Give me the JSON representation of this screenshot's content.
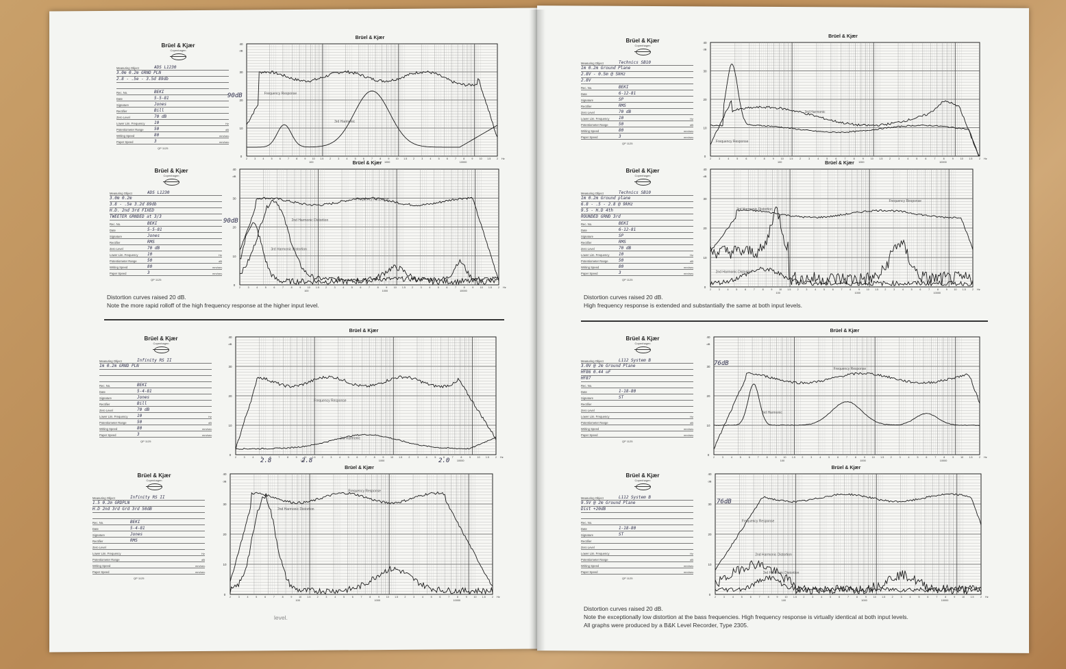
{
  "brand": {
    "title": "Brüel & Kjær",
    "subtitle": "Copenhagen"
  },
  "form_labels": {
    "object": "Measuring Object",
    "rec": "Rec. No.",
    "date": "Date",
    "signature": "Signature",
    "rectifier": "Rectifier",
    "zero": "Zero Level",
    "lower": "Lower Lim. Frequency",
    "pot": "Potentiometer Range",
    "writing": "Writing Speed",
    "paper": "Paper Speed",
    "form_no": "QP 1125",
    "hz": "Hz",
    "db": "dB",
    "mm": "mm/sec."
  },
  "chart_title": "Brüel & Kjær",
  "left": {
    "cards": [
      {
        "object": "ADS L1230",
        "lines": [
          "3.0m 0.2m  GRND PLN",
          "2.8 - .5e - 3.5d 89db"
        ],
        "rec": "BEKI",
        "date": "5-5-81",
        "signature": "Jones",
        "rectifier": "Bill",
        "zero": "70 dB",
        "lower": "10",
        "pot": "50",
        "writing": "80",
        "paper": "3"
      },
      {
        "object": "ADS L1230",
        "lines": [
          "3.0m 0.2m",
          "3.8 - .5e 3.2d 89db",
          "H.D. 2nd  3rd  FIXED",
          "TWEETER  GRNDED  at 3/3"
        ],
        "rec": "BEKI",
        "date": "5-5-81",
        "signature": "Jones",
        "rectifier": "RMS",
        "zero": "70 dB",
        "lower": "10",
        "pot": "50",
        "writing": "80",
        "paper": "3"
      },
      {
        "object": "Infinity  RS II",
        "lines": [
          "1m 0.2m GRND  PLN"
        ],
        "rec": "BEKI",
        "date": "5-4-81",
        "signature": "Jones",
        "rectifier": "Bill",
        "zero": "70 dB",
        "lower": "10",
        "pot": "50",
        "writing": "80",
        "paper": "3"
      },
      {
        "object": "Infinity  RS II",
        "lines": [
          "1.5 0.2m  GRDPLN",
          "H.D  2nd  3rd  Grd  3rd  50dB"
        ],
        "rec": "BEKI",
        "date": "5-4-81",
        "signature": "Jones",
        "rectifier": "RMS",
        "zero": "",
        "lower": "",
        "pot": "",
        "writing": "",
        "paper": ""
      }
    ],
    "chart_labels": [
      [
        "Frequency Response",
        "3rd Harmonic"
      ],
      [
        "Frequency Response",
        "2nd Harmonic Distortion",
        "3rd Harmonic Distortion"
      ],
      [
        "Frequency Response",
        "3rd Harmonic"
      ],
      [
        "Frequency Response",
        "2nd Harmonic Distortion"
      ]
    ],
    "annotations": {
      "ref_level_1": "90dB",
      "ref_level_2": "90dB",
      "marks": [
        "2.8",
        "2.8",
        "2.0"
      ]
    },
    "caption_mid": [
      "Distortion curves raised 20 dB.",
      "Note the more rapid rolloff of the high frequency response at the higher input level."
    ],
    "caption_bottom": "level."
  },
  "right": {
    "cards": [
      {
        "object": "Technics SB10",
        "lines": [
          "1m 0.2m  Ground  Plane",
          "2.8V - 0.5m  @ 5kHz",
          "2.8V"
        ],
        "rec": "BEKI",
        "date": "6-12-81",
        "signature": "SP",
        "rectifier": "RMS",
        "zero": "70 dB",
        "lower": "10",
        "pot": "50",
        "writing": "80",
        "paper": "3"
      },
      {
        "object": "Technics SB10",
        "lines": [
          "1m 0.2m   Ground plane",
          "6.8 - .5 - 2.8 @ 9kHz",
          "9.5 - H.D 4th",
          "ROUNDED  GRND 3rd"
        ],
        "rec": "BEKI",
        "date": "6-12-81",
        "signature": "SP",
        "rectifier": "RMS",
        "zero": "70 dB",
        "lower": "10",
        "pot": "50",
        "writing": "80",
        "paper": "3"
      },
      {
        "object": "L112   System B",
        "lines": [
          "3.0V @ 2m  Ground Plane",
          "HF86       0.44 uF",
          "HF87"
        ],
        "rec": "",
        "date": "1-18-80",
        "signature": "ST",
        "rectifier": "",
        "zero": "",
        "lower": "",
        "pot": "",
        "writing": "",
        "paper": ""
      },
      {
        "object": "L112   System B",
        "lines": [
          "9.5V @ 2m   Ground Plane",
          "Dist  +20dB"
        ],
        "rec": "",
        "date": "1-18-80",
        "signature": "ST",
        "rectifier": "",
        "zero": "",
        "lower": "",
        "pot": "",
        "writing": "",
        "paper": ""
      }
    ],
    "chart_labels": [
      [
        "3rd Harmonic",
        "Frequency Response"
      ],
      [
        "Frequency Response",
        "3rd Harmonic Distortion",
        "2nd Harmonic Distortion"
      ],
      [
        "Frequency Response",
        "3rd Harmonic"
      ],
      [
        "Frequency Response",
        "2nd Harmonic Distortion",
        "3rd Harmonic Distortion"
      ]
    ],
    "annotations": {
      "ref_level_3": "76dB",
      "ref_level_4": "76dB"
    },
    "caption_mid": [
      "Distortion curves raised 20 dB.",
      "High frequency response is extended and substantially the same at both input levels."
    ],
    "caption_bottom": [
      "Distortion curves raised 20 dB.",
      "Note the exceptionally low distortion at the bass frequencies. High frequency response is virtually identical at both input levels.",
      "All graphs were produced by a B&K Level Recorder, Type 2305."
    ]
  },
  "axis": {
    "y_ticks": [
      "40",
      "dB",
      "30",
      "20",
      "10",
      "0"
    ],
    "x_ticks": [
      "2",
      "3",
      "4",
      "5",
      "6",
      "7",
      "8",
      "9",
      "10",
      "1.5",
      "2",
      "3",
      "4",
      "5",
      "6",
      "7",
      "8",
      "9",
      "10",
      "1.5",
      "2",
      "3",
      "4",
      "5",
      "6",
      "7",
      "8",
      "9",
      "10",
      "1.5",
      "2"
    ],
    "x_decades": [
      "100",
      "1000",
      "10000"
    ],
    "x_unit": "Hz"
  }
}
